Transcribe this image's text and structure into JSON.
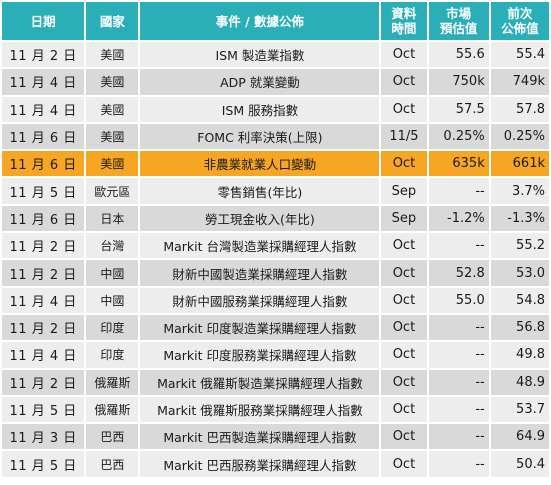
{
  "headers": {
    "date": "日期",
    "country": "國家",
    "event": "事件 / 數據公佈",
    "period_l1": "資料",
    "period_l2": "時間",
    "forecast_l1": "市場",
    "forecast_l2": "預估值",
    "previous_l1": "前次",
    "previous_l2": "公佈值"
  },
  "colors": {
    "header": "#2aaeb8",
    "row_light": "#ededed",
    "row_dark": "#d9d9d9",
    "highlight": "#f6a623"
  },
  "rows": [
    {
      "date": "11 月 2 日",
      "country": "美國",
      "event": "ISM 製造業指數",
      "period": "Oct",
      "forecast": "55.6",
      "previous": "55.4"
    },
    {
      "date": "11 月 4 日",
      "country": "美國",
      "event": "ADP 就業變動",
      "period": "Oct",
      "forecast": "750k",
      "previous": "749k"
    },
    {
      "date": "11 月 4 日",
      "country": "美國",
      "event": "ISM 服務指數",
      "period": "Oct",
      "forecast": "57.5",
      "previous": "57.8"
    },
    {
      "date": "11 月 6 日",
      "country": "美國",
      "event": "FOMC 利率決策(上限)",
      "period": "11/5",
      "forecast": "0.25%",
      "previous": "0.25%"
    },
    {
      "date": "11 月 6 日",
      "country": "美國",
      "event": "非農業就業人口變動",
      "period": "Oct",
      "forecast": "635k",
      "previous": "661k",
      "highlight": true
    },
    {
      "date": "11 月 5 日",
      "country": "歐元區",
      "event": "零售銷售(年比)",
      "period": "Sep",
      "forecast": "--",
      "previous": "3.7%"
    },
    {
      "date": "11 月 6 日",
      "country": "日本",
      "event": "勞工現金收入(年比)",
      "period": "Sep",
      "forecast": "-1.2%",
      "previous": "-1.3%"
    },
    {
      "date": "11 月 2 日",
      "country": "台灣",
      "event": "Markit 台灣製造業採購經理人指數",
      "period": "Oct",
      "forecast": "--",
      "previous": "55.2"
    },
    {
      "date": "11 月 2 日",
      "country": "中國",
      "event": "財新中國製造業採購經理人指數",
      "period": "Oct",
      "forecast": "52.8",
      "previous": "53.0"
    },
    {
      "date": "11 月 4 日",
      "country": "中國",
      "event": "財新中國服務業採購經理人指數",
      "period": "Oct",
      "forecast": "55.0",
      "previous": "54.8"
    },
    {
      "date": "11 月 2 日",
      "country": "印度",
      "event": "Markit 印度製造業採購經理人指數",
      "period": "Oct",
      "forecast": "--",
      "previous": "56.8"
    },
    {
      "date": "11 月 4 日",
      "country": "印度",
      "event": "Markit 印度服務業採購經理人指數",
      "period": "Oct",
      "forecast": "--",
      "previous": "49.8"
    },
    {
      "date": "11 月 2 日",
      "country": "俄羅斯",
      "event": "Markit 俄羅斯製造業採購經理人指數",
      "period": "Oct",
      "forecast": "--",
      "previous": "48.9"
    },
    {
      "date": "11 月 5 日",
      "country": "俄羅斯",
      "event": "Markit 俄羅斯服務業採購經理人指數",
      "period": "Oct",
      "forecast": "--",
      "previous": "53.7"
    },
    {
      "date": "11 月 3 日",
      "country": "巴西",
      "event": "Markit 巴西製造業採購經理人指數",
      "period": "Oct",
      "forecast": "--",
      "previous": "64.9"
    },
    {
      "date": "11 月 5 日",
      "country": "巴西",
      "event": "Markit 巴西服務業採購經理人指數",
      "period": "Oct",
      "forecast": "--",
      "previous": "50.4"
    }
  ]
}
